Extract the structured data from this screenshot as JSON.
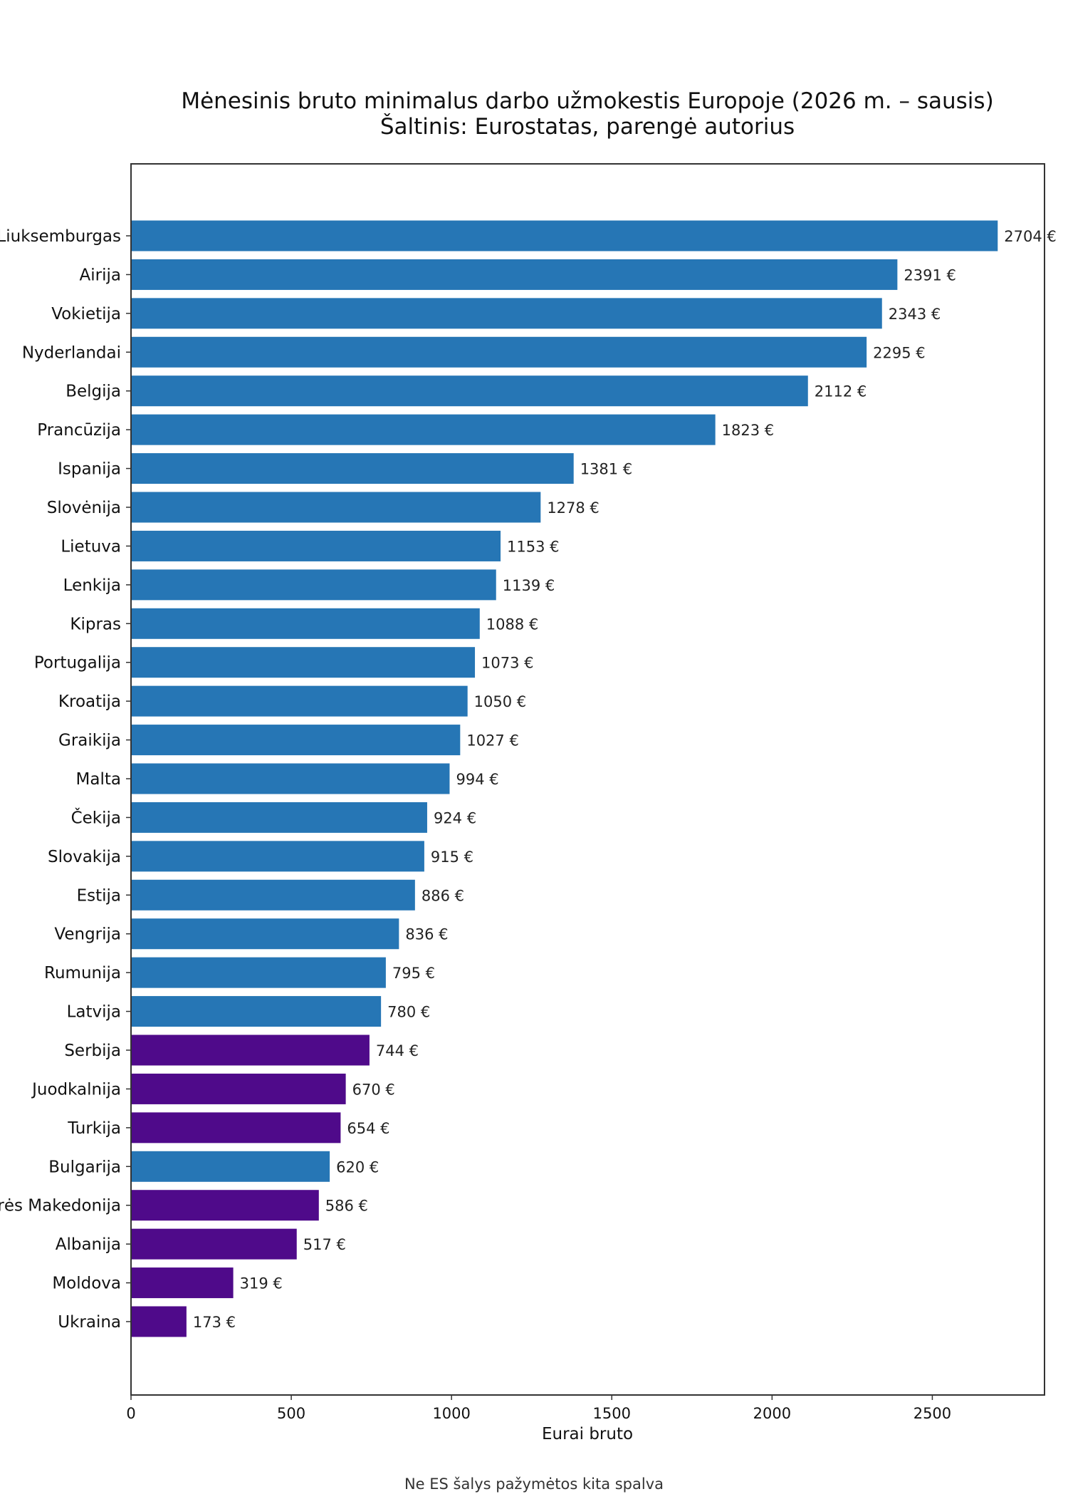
{
  "chart_data": {
    "type": "bar",
    "orientation": "horizontal",
    "title": "Mėnesinis bruto minimalus darbo užmokestis Europoje (2026 m. – sausis)",
    "subtitle": "Šaltinis: Eurostatas, parengė autorius",
    "xlabel": "Eurai bruto",
    "ylabel": "",
    "xlim": [
      0,
      2850
    ],
    "xticks": [
      0,
      500,
      1000,
      1500,
      2000,
      2500
    ],
    "value_suffix": " €",
    "grid": false,
    "footnote": "Ne ES šalys pažymėtos kita spalva",
    "colors": {
      "eu": "#2676b5",
      "non_eu": "#4f0a8a"
    },
    "categories": [
      "Liuksemburgas",
      "Airija",
      "Vokietija",
      "Nyderlandai",
      "Belgija",
      "Prancūzija",
      "Ispanija",
      "Slovėnija",
      "Lietuva",
      "Lenkija",
      "Kipras",
      "Portugalija",
      "Kroatija",
      "Graikija",
      "Malta",
      "Čekija",
      "Slovakija",
      "Estija",
      "Vengrija",
      "Rumunija",
      "Latvija",
      "Serbija",
      "Juodkalnija",
      "Turkija",
      "Bulgarija",
      "Šiaurės Makedonija",
      "Albanija",
      "Moldova",
      "Ukraina"
    ],
    "values": [
      2704,
      2391,
      2343,
      2295,
      2112,
      1823,
      1381,
      1278,
      1153,
      1139,
      1088,
      1073,
      1050,
      1027,
      994,
      924,
      915,
      886,
      836,
      795,
      780,
      744,
      670,
      654,
      620,
      586,
      517,
      319,
      173
    ],
    "group": [
      "eu",
      "eu",
      "eu",
      "eu",
      "eu",
      "eu",
      "eu",
      "eu",
      "eu",
      "eu",
      "eu",
      "eu",
      "eu",
      "eu",
      "eu",
      "eu",
      "eu",
      "eu",
      "eu",
      "eu",
      "eu",
      "non_eu",
      "non_eu",
      "non_eu",
      "eu",
      "non_eu",
      "non_eu",
      "non_eu",
      "non_eu"
    ]
  }
}
